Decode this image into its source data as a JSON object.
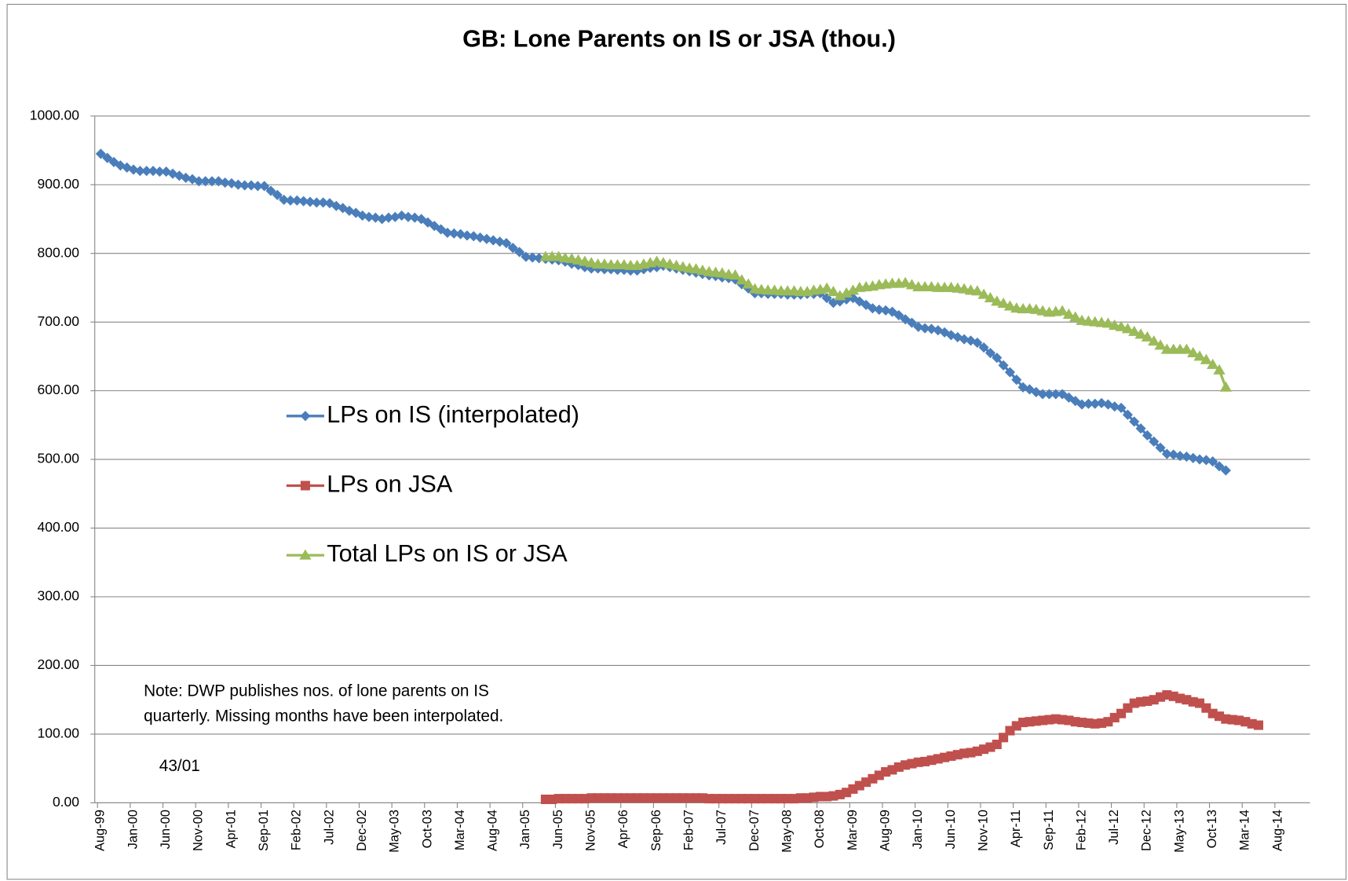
{
  "chart_data": {
    "type": "line",
    "title": "GB: Lone Parents on IS or JSA (thou.)",
    "categories": [
      "Aug-99",
      null,
      null,
      null,
      null,
      "Jan-00",
      null,
      null,
      null,
      null,
      "Jun-00",
      null,
      null,
      null,
      null,
      "Nov-00",
      null,
      null,
      null,
      null,
      "Apr-01",
      null,
      null,
      null,
      null,
      "Sep-01",
      null,
      null,
      null,
      null,
      "Feb-02",
      null,
      null,
      null,
      null,
      "Jul-02",
      null,
      null,
      null,
      null,
      "Dec-02",
      null,
      null,
      null,
      null,
      "May-03",
      null,
      null,
      null,
      null,
      "Oct-03",
      null,
      null,
      null,
      null,
      "Mar-04",
      null,
      null,
      null,
      null,
      "Aug-04",
      null,
      null,
      null,
      null,
      "Jan-05",
      null,
      null,
      null,
      null,
      "Jun-05",
      null,
      null,
      null,
      null,
      "Nov-05",
      null,
      null,
      null,
      null,
      "Apr-06",
      null,
      null,
      null,
      null,
      "Sep-06",
      null,
      null,
      null,
      null,
      "Feb-07",
      null,
      null,
      null,
      null,
      "Jul-07",
      null,
      null,
      null,
      null,
      "Dec-07",
      null,
      null,
      null,
      null,
      "May-08",
      null,
      null,
      null,
      null,
      "Oct-08",
      null,
      null,
      null,
      null,
      "Mar-09",
      null,
      null,
      null,
      null,
      "Aug-09",
      null,
      null,
      null,
      null,
      "Jan-10",
      null,
      null,
      null,
      null,
      "Jun-10",
      null,
      null,
      null,
      null,
      "Nov-10",
      null,
      null,
      null,
      null,
      "Apr-11",
      null,
      null,
      null,
      null,
      "Sep-11",
      null,
      null,
      null,
      null,
      "Feb-12",
      null,
      null,
      null,
      null,
      "Jul-12",
      null,
      null,
      null,
      null,
      "Dec-12",
      null,
      null,
      null,
      null,
      "May-13",
      null,
      null,
      null,
      null,
      "Oct-13",
      null,
      null,
      null,
      null,
      "Mar-14",
      null,
      null,
      null,
      null,
      "Aug-14"
    ],
    "series": [
      {
        "name": "LPs on IS (interpolated)",
        "color": "#4a7ebb",
        "marker": "diamond",
        "values": [
          945,
          939,
          933,
          928,
          925,
          922,
          920,
          920,
          920,
          919,
          919,
          916,
          913,
          910,
          908,
          905,
          905,
          905,
          905,
          903,
          902,
          900,
          899,
          899,
          898,
          898,
          891,
          885,
          878,
          877,
          877,
          876,
          875,
          874,
          874,
          873,
          869,
          866,
          862,
          859,
          855,
          853,
          852,
          850,
          852,
          853,
          855,
          853,
          852,
          850,
          845,
          840,
          835,
          830,
          829,
          828,
          826,
          825,
          823,
          821,
          819,
          817,
          815,
          808,
          802,
          795,
          794,
          793,
          792,
          791,
          790,
          788,
          785,
          783,
          780,
          778,
          778,
          777,
          777,
          776,
          776,
          775,
          775,
          777,
          779,
          780,
          782,
          780,
          778,
          776,
          774,
          772,
          770,
          768,
          767,
          765,
          764,
          762,
          755,
          749,
          742,
          742,
          741,
          741,
          741,
          740,
          740,
          740,
          741,
          741,
          742,
          735,
          728,
          730,
          733,
          735,
          730,
          725,
          720,
          718,
          717,
          715,
          710,
          704,
          699,
          693,
          691,
          690,
          688,
          685,
          681,
          678,
          675,
          673,
          670,
          663,
          655,
          648,
          637,
          627,
          616,
          605,
          602,
          598,
          595,
          595,
          595,
          595,
          590,
          585,
          580,
          581,
          581,
          582,
          580,
          577,
          575,
          565,
          555,
          545,
          535,
          526,
          517,
          508,
          507,
          505,
          504,
          502,
          500,
          499,
          497,
          490,
          484,
          null,
          null,
          null,
          null,
          null,
          null,
          null,
          null
        ]
      },
      {
        "name": "LPs on JSA",
        "color": "#c0504d",
        "marker": "square",
        "values": [
          null,
          null,
          null,
          null,
          null,
          null,
          null,
          null,
          null,
          null,
          null,
          null,
          null,
          null,
          null,
          null,
          null,
          null,
          null,
          null,
          null,
          null,
          null,
          null,
          null,
          null,
          null,
          null,
          null,
          null,
          null,
          null,
          null,
          null,
          null,
          null,
          null,
          null,
          null,
          null,
          null,
          null,
          null,
          null,
          null,
          null,
          null,
          null,
          null,
          null,
          null,
          null,
          null,
          null,
          null,
          null,
          null,
          null,
          null,
          null,
          null,
          null,
          null,
          null,
          null,
          null,
          null,
          null,
          5,
          5,
          6,
          6,
          6,
          6,
          6,
          7,
          7,
          7,
          7,
          7,
          7,
          7,
          7,
          7,
          7,
          7,
          7,
          7,
          7,
          7,
          7,
          7,
          7,
          6,
          6,
          6,
          6,
          6,
          6,
          6,
          6,
          6,
          6,
          6,
          6,
          6,
          6,
          7,
          7,
          8,
          9,
          9,
          10,
          12,
          15,
          20,
          25,
          30,
          35,
          40,
          45,
          48,
          52,
          55,
          57,
          59,
          60,
          62,
          64,
          66,
          68,
          70,
          72,
          73,
          75,
          78,
          81,
          85,
          95,
          105,
          112,
          117,
          118,
          119,
          120,
          121,
          122,
          121,
          120,
          118,
          117,
          116,
          115,
          116,
          118,
          124,
          130,
          138,
          145,
          147,
          148,
          150,
          154,
          157,
          155,
          152,
          150,
          147,
          145,
          138,
          130,
          126,
          122,
          121,
          120,
          118,
          115,
          113,
          null,
          null,
          null
        ]
      },
      {
        "name": "Total LPs on IS or JSA",
        "color": "#9bbb59",
        "marker": "triangle",
        "values": [
          null,
          null,
          null,
          null,
          null,
          null,
          null,
          null,
          null,
          null,
          null,
          null,
          null,
          null,
          null,
          null,
          null,
          null,
          null,
          null,
          null,
          null,
          null,
          null,
          null,
          null,
          null,
          null,
          null,
          null,
          null,
          null,
          null,
          null,
          null,
          null,
          null,
          null,
          null,
          null,
          null,
          null,
          null,
          null,
          null,
          null,
          null,
          null,
          null,
          null,
          null,
          null,
          null,
          null,
          null,
          null,
          null,
          null,
          null,
          null,
          null,
          null,
          null,
          null,
          null,
          null,
          null,
          null,
          795,
          795,
          795,
          793,
          792,
          790,
          788,
          786,
          784,
          784,
          783,
          783,
          783,
          782,
          782,
          784,
          786,
          788,
          786,
          784,
          782,
          780,
          778,
          777,
          775,
          773,
          772,
          771,
          769,
          768,
          761,
          755,
          748,
          747,
          746,
          746,
          745,
          745,
          745,
          744,
          744,
          746,
          747,
          749,
          744,
          738,
          742,
          746,
          750,
          751,
          752,
          754,
          755,
          756,
          756,
          757,
          754,
          751,
          751,
          751,
          750,
          750,
          750,
          749,
          748,
          746,
          745,
          740,
          735,
          730,
          727,
          723,
          720,
          719,
          719,
          718,
          716,
          714,
          715,
          716,
          711,
          707,
          702,
          701,
          700,
          699,
          698,
          695,
          693,
          690,
          686,
          682,
          678,
          672,
          666,
          660,
          660,
          660,
          660,
          655,
          650,
          645,
          638,
          630,
          605,
          null,
          null,
          null,
          null,
          null,
          null,
          null,
          null
        ]
      }
    ],
    "ylim": [
      0,
      1000
    ],
    "yticks": [
      {
        "value": 0,
        "label": "0.00"
      },
      {
        "value": 100,
        "label": "100.00"
      },
      {
        "value": 200,
        "label": "200.00"
      },
      {
        "value": 300,
        "label": "300.00"
      },
      {
        "value": 400,
        "label": "400.00"
      },
      {
        "value": 500,
        "label": "500.00"
      },
      {
        "value": 600,
        "label": "600.00"
      },
      {
        "value": 700,
        "label": "700.00"
      },
      {
        "value": 800,
        "label": "800.00"
      },
      {
        "value": 900,
        "label": "900.00"
      },
      {
        "value": 1000,
        "label": "1000.00"
      }
    ],
    "grid": true,
    "note": [
      "Note: DWP publishes nos. of lone parents on IS",
      "quarterly. Missing months have been interpolated."
    ],
    "annotation": "43/01"
  }
}
